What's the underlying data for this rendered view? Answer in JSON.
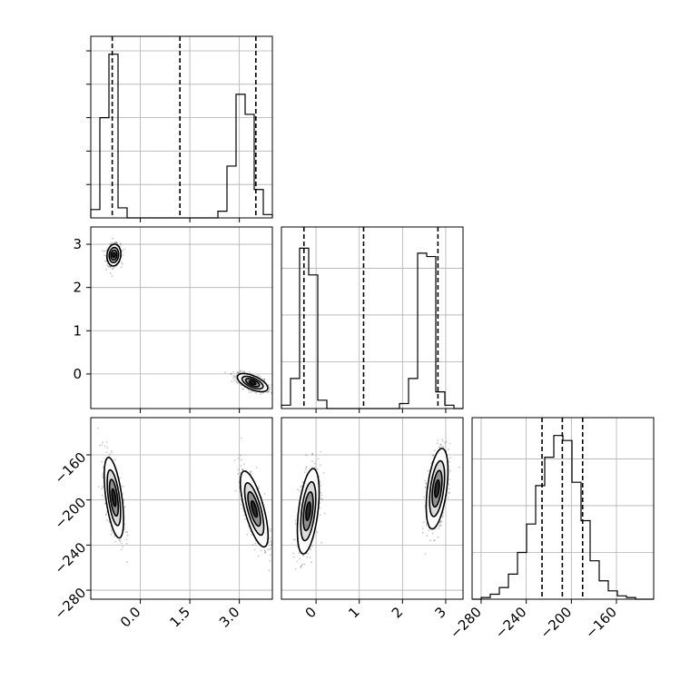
{
  "chart_data": {
    "type": "corner",
    "title": "",
    "parameters": [
      {
        "axis_label": "",
        "ticks": [
          0.0,
          1.5,
          3.0
        ],
        "tick_labels": [
          "0.0",
          "1.5",
          "3.0"
        ],
        "range": [
          -1.5,
          4.0
        ]
      },
      {
        "axis_label": "",
        "ticks": [
          0,
          1,
          2,
          3
        ],
        "tick_labels": [
          "0",
          "1",
          "2",
          "3"
        ],
        "range": [
          -0.8,
          3.4
        ]
      },
      {
        "axis_label": "",
        "ticks": [
          -280,
          -240,
          -200,
          -160
        ],
        "tick_labels": [
          "−280",
          "−240",
          "−200",
          "−160"
        ],
        "range": [
          -288,
          -127
        ]
      }
    ],
    "histograms": [
      {
        "parameter": 0,
        "bin_edges": [
          -1.5,
          -1.225,
          -0.95,
          -0.675,
          -0.4,
          -0.125,
          0.15,
          0.425,
          0.7,
          0.975,
          1.25,
          1.525,
          1.8,
          2.075,
          2.35,
          2.625,
          2.9,
          3.175,
          3.45,
          3.725,
          4.0
        ],
        "counts": [
          0.05,
          0.6,
          0.98,
          0.06,
          0,
          0,
          0,
          0,
          0,
          0,
          0,
          0,
          0,
          0,
          0.04,
          0.31,
          0.74,
          0.62,
          0.17,
          0.02
        ],
        "quantiles": [
          -0.85,
          1.2,
          3.5
        ]
      },
      {
        "parameter": 1,
        "bin_edges": [
          -0.8,
          -0.59,
          -0.38,
          -0.17,
          0.04,
          0.25,
          0.46,
          0.67,
          0.88,
          1.09,
          1.3,
          1.51,
          1.72,
          1.93,
          2.14,
          2.35,
          2.56,
          2.77,
          2.98,
          3.19,
          3.4
        ],
        "counts": [
          0.02,
          0.18,
          0.96,
          0.8,
          0.05,
          0,
          0,
          0,
          0,
          0,
          0,
          0,
          0,
          0.03,
          0.18,
          0.93,
          0.91,
          0.1,
          0.02,
          0
        ],
        "quantiles": [
          -0.28,
          1.1,
          2.82
        ]
      },
      {
        "parameter": 2,
        "bin_edges": [
          -288,
          -279.95,
          -271.9,
          -263.85,
          -255.8,
          -247.75,
          -239.7,
          -231.65,
          -223.6,
          -215.55,
          -207.5,
          -199.45,
          -191.4,
          -183.35,
          -175.3,
          -167.25,
          -159.2,
          -151.15,
          -143.1,
          -135.05,
          -127.0
        ],
        "counts": [
          0,
          0.01,
          0.03,
          0.07,
          0.15,
          0.28,
          0.45,
          0.68,
          0.85,
          0.98,
          0.95,
          0.7,
          0.47,
          0.23,
          0.11,
          0.05,
          0.02,
          0.01,
          0,
          0
        ],
        "quantiles": [
          -226,
          -208,
          -190
        ]
      }
    ],
    "scatter_2d": [
      {
        "x_param": 0,
        "y_param": 1,
        "clusters": [
          {
            "center": [
              -0.8,
              2.75
            ],
            "spread": [
              0.1,
              0.12
            ],
            "corr": 0.1
          },
          {
            "center": [
              3.4,
              -0.2
            ],
            "spread": [
              0.22,
              0.1
            ],
            "corr": -0.6
          }
        ]
      },
      {
        "x_param": 0,
        "y_param": 2,
        "clusters": [
          {
            "center": [
              -0.8,
              -198
            ],
            "spread": [
              0.14,
              17
            ],
            "corr": -0.55
          },
          {
            "center": [
              3.45,
              -208
            ],
            "spread": [
              0.2,
              16
            ],
            "corr": -0.7
          }
        ]
      },
      {
        "x_param": 1,
        "y_param": 2,
        "clusters": [
          {
            "center": [
              -0.18,
              -210
            ],
            "spread": [
              0.12,
              18
            ],
            "corr": 0.45
          },
          {
            "center": [
              2.8,
              -190
            ],
            "spread": [
              0.12,
              17
            ],
            "corr": 0.45
          }
        ]
      }
    ],
    "grid": true,
    "legend": "none"
  }
}
